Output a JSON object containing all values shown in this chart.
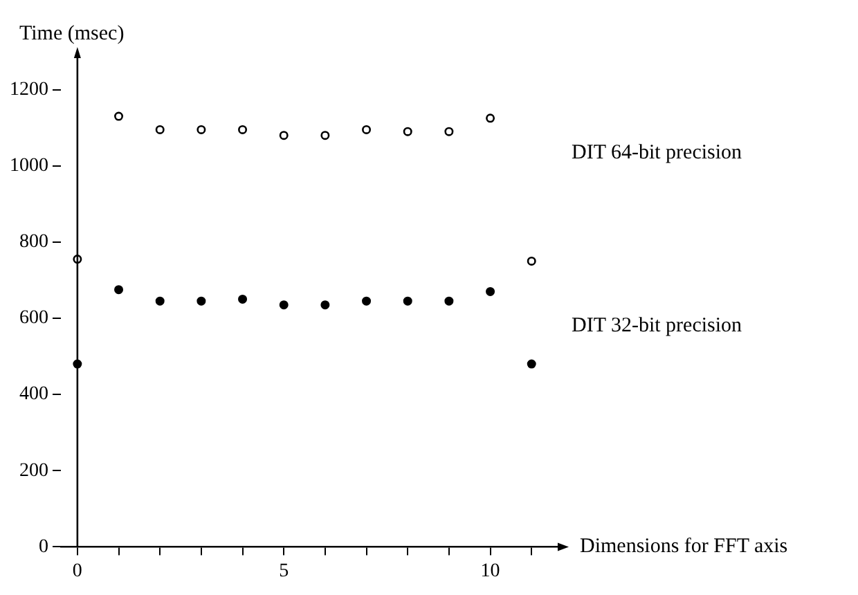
{
  "chart_data": {
    "type": "scatter",
    "xlabel": "Dimensions for FFT axis",
    "ylabel": "Time (msec)",
    "x": [
      0,
      1,
      2,
      3,
      4,
      5,
      6,
      7,
      8,
      9,
      10,
      11
    ],
    "series": [
      {
        "name": "DIT 64-bit precision",
        "color": "#000000",
        "values": [
          755,
          1130,
          1095,
          1095,
          1095,
          1080,
          1080,
          1095,
          1090,
          1090,
          1125,
          750
        ]
      },
      {
        "name": "DIT 32-bit precision",
        "color": "#000000",
        "values": [
          480,
          675,
          645,
          645,
          650,
          635,
          635,
          645,
          645,
          645,
          670,
          480
        ]
      }
    ],
    "xlim": [
      -0.4,
      11.7
    ],
    "ylim": [
      0,
      1290
    ],
    "xticks": [
      0,
      {
        "value": 1,
        "label": null
      },
      {
        "value": 2,
        "label": null
      },
      {
        "value": 3,
        "label": null
      },
      {
        "value": 4,
        "label": null
      },
      5,
      {
        "value": 6,
        "label": null
      },
      {
        "value": 7,
        "label": null
      },
      {
        "value": 8,
        "label": null
      },
      {
        "value": 9,
        "label": null
      },
      10,
      {
        "value": 11,
        "label": null
      }
    ],
    "yticks": [
      0,
      200,
      400,
      600,
      800,
      1000,
      1200
    ],
    "grid": false,
    "legend": false,
    "marker": "circle"
  }
}
